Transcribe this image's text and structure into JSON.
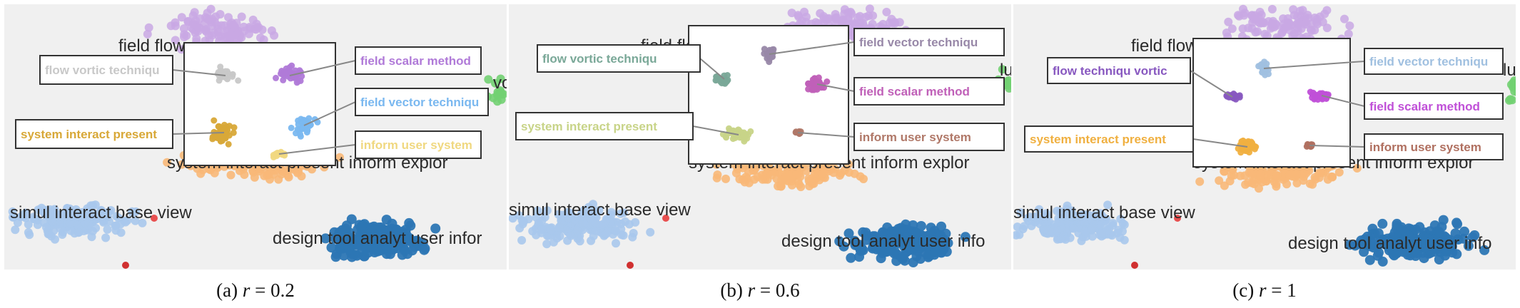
{
  "chart_data": [
    {
      "type": "scatter",
      "caption_prefix": "(a) ",
      "caption_var": "r",
      "caption_value": " = 0.2",
      "r": 0.2,
      "background_labels": [
        "field flow",
        "volu",
        "system interact present inform explor",
        "simul interact base view",
        "design tool analyt user infor"
      ],
      "annotations": [
        {
          "text": "flow vortic techniqu",
          "color": "#c8c8c8"
        },
        {
          "text": "field scalar method",
          "color": "#b07ad8"
        },
        {
          "text": "field vector techniqu",
          "color": "#7ab8f0"
        },
        {
          "text": "system interact present",
          "color": "#d8a838"
        },
        {
          "text": "inform user system",
          "color": "#f0d880"
        }
      ]
    },
    {
      "type": "scatter",
      "caption_prefix": "(b) ",
      "caption_var": "r",
      "caption_value": " = 0.6",
      "r": 0.6,
      "background_labels": [
        "field flow",
        "lu",
        "system interact present inform explor",
        "simul interact base view",
        "design tool analyt user info"
      ],
      "annotations": [
        {
          "text": "flow vortic techniqu",
          "color": "#7aa898"
        },
        {
          "text": "field vector techniqu",
          "color": "#9888a8"
        },
        {
          "text": "field scalar method",
          "color": "#c060b8"
        },
        {
          "text": "system interact present",
          "color": "#c8d488"
        },
        {
          "text": "inform user system",
          "color": "#b07868"
        }
      ]
    },
    {
      "type": "scatter",
      "caption_prefix": "(c) ",
      "caption_var": "r",
      "caption_value": " = 1",
      "r": 1,
      "background_labels": [
        "field flow",
        "lu",
        "system interact present inform explor",
        "simul interact base view",
        "design tool analyt user info"
      ],
      "annotations": [
        {
          "text": "flow techniqu vortic",
          "color": "#8858c0"
        },
        {
          "text": "field vector techniqu",
          "color": "#a0c0e0"
        },
        {
          "text": "field scalar method",
          "color": "#c050d8"
        },
        {
          "text": "system interact present",
          "color": "#f0b040"
        },
        {
          "text": "inform user system",
          "color": "#b07060"
        }
      ]
    }
  ]
}
